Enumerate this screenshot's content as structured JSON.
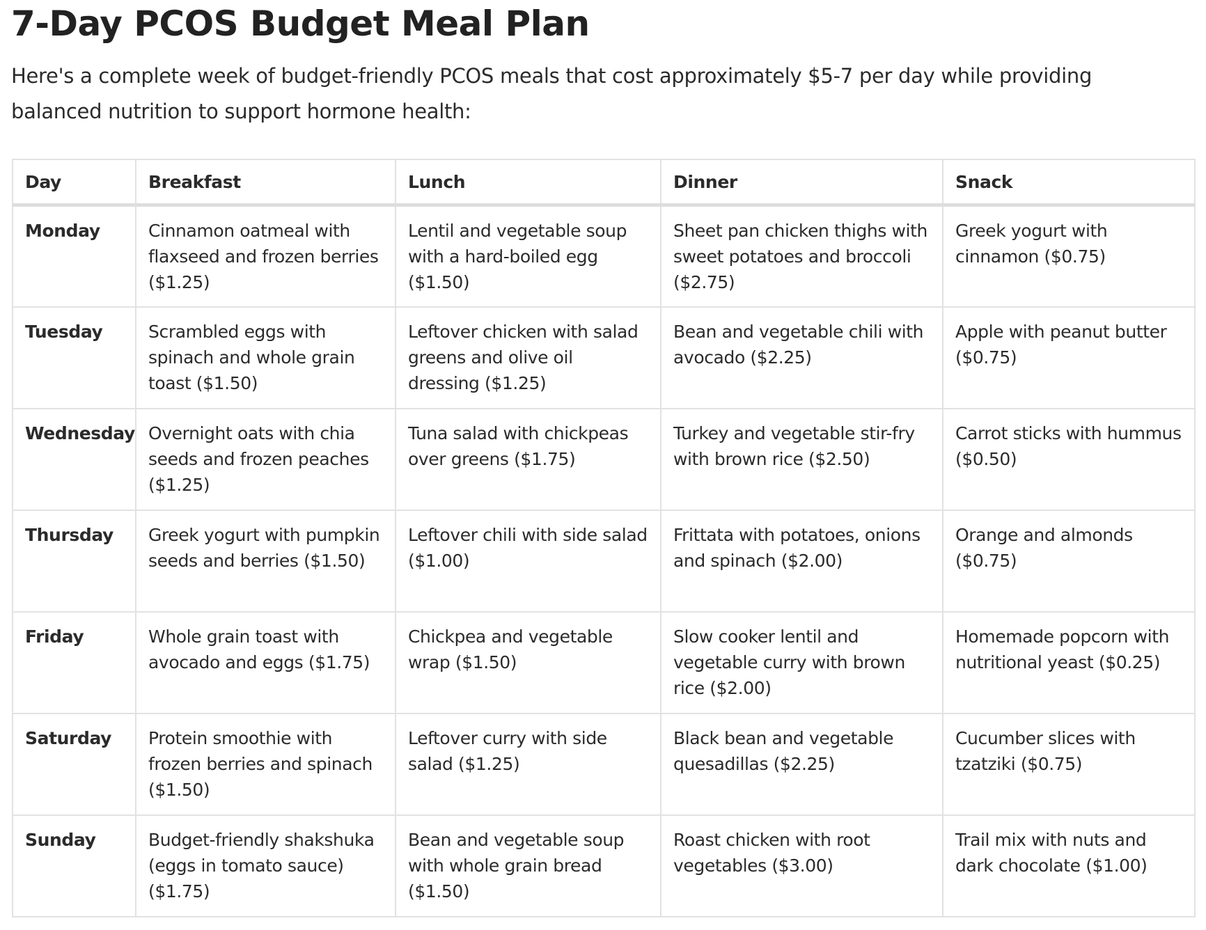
{
  "title": "7-Day PCOS Budget Meal Plan",
  "intro": "Here's a complete week of budget-friendly PCOS meals that cost approximately $5-7 per day while providing balanced nutrition to support hormone health:",
  "table": {
    "headers": [
      "Day",
      "Breakfast",
      "Lunch",
      "Dinner",
      "Snack"
    ],
    "rows": [
      [
        "Monday",
        "Cinnamon oatmeal with flaxseed and frozen berries ($1.25)",
        "Lentil and vegetable soup with a hard-boiled egg ($1.50)",
        "Sheet pan chicken thighs with sweet potatoes and broccoli ($2.75)",
        "Greek yogurt with cinnamon ($0.75)"
      ],
      [
        "Tuesday",
        "Scrambled eggs with spinach and whole grain toast ($1.50)",
        "Leftover chicken with salad greens and olive oil dressing ($1.25)",
        "Bean and vegetable chili with avocado ($2.25)",
        "Apple with peanut butter ($0.75)"
      ],
      [
        "Wednesday",
        "Overnight oats with chia seeds and frozen peaches ($1.25)",
        "Tuna salad with chickpeas over greens ($1.75)",
        "Turkey and vegetable stir-fry with brown rice ($2.50)",
        "Carrot sticks with hummus ($0.50)"
      ],
      [
        "Thursday",
        "Greek yogurt with pumpkin seeds and berries ($1.50)",
        "Leftover chili with side salad ($1.00)",
        "Frittata with potatoes, onions and spinach ($2.00)",
        "Orange and almonds ($0.75)"
      ],
      [
        "Friday",
        "Whole grain toast with avocado and eggs ($1.75)",
        "Chickpea and vegetable wrap ($1.50)",
        "Slow cooker lentil and vegetable curry with brown rice ($2.00)",
        "Homemade popcorn with nutritional yeast ($0.25)"
      ],
      [
        "Saturday",
        "Protein smoothie with frozen berries and spinach ($1.50)",
        "Leftover curry with side salad ($1.25)",
        "Black bean and vegetable quesadillas ($2.25)",
        "Cucumber slices with tzatziki ($0.75)"
      ],
      [
        "Sunday",
        "Budget-friendly shakshuka (eggs in tomato sauce) ($1.75)",
        "Bean and vegetable soup with whole grain bread ($1.50)",
        "Roast chicken with root vegetables ($3.00)",
        "Trail mix with nuts and dark chocolate ($1.00)"
      ]
    ]
  }
}
